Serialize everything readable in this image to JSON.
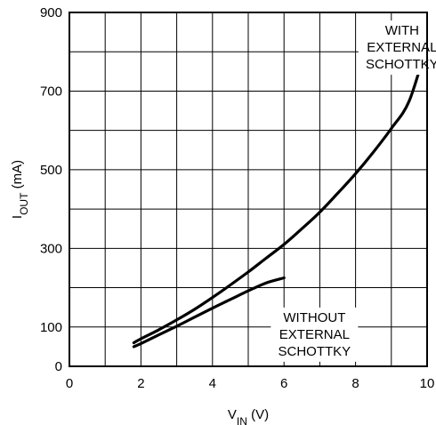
{
  "chart_data": {
    "type": "line",
    "title": "",
    "xlabel": {
      "main": "V",
      "sub": "IN",
      "unit": " (V)"
    },
    "ylabel": {
      "main": "I",
      "sub": "OUT",
      "unit": " (mA)"
    },
    "xlim": [
      0,
      10
    ],
    "ylim": [
      0,
      900
    ],
    "xticks": [
      0,
      2,
      4,
      6,
      8,
      10
    ],
    "yticks": [
      0,
      100,
      300,
      500,
      700,
      900
    ],
    "x_grid": [
      0,
      1,
      2,
      3,
      4,
      5,
      6,
      7,
      8,
      9,
      10
    ],
    "y_grid": [
      0,
      100,
      200,
      300,
      400,
      500,
      600,
      700,
      800,
      900
    ],
    "grid": true,
    "series": [
      {
        "name": "WITH EXTERNAL SCHOTTKY",
        "x": [
          1.8,
          2,
          2.5,
          3,
          3.5,
          4,
          4.5,
          5,
          5.5,
          6,
          6.5,
          7,
          7.5,
          8,
          8.5,
          9,
          9.5,
          10
        ],
        "y": [
          60,
          70,
          93,
          118,
          145,
          175,
          207,
          240,
          275,
          310,
          350,
          392,
          440,
          490,
          545,
          605,
          675,
          820
        ]
      },
      {
        "name": "WITHOUT EXTERNAL SCHOTTKY",
        "x": [
          1.8,
          2,
          2.5,
          3,
          3.5,
          4,
          4.5,
          5,
          5.5,
          6
        ],
        "y": [
          50,
          58,
          80,
          102,
          125,
          148,
          170,
          192,
          212,
          225
        ]
      }
    ],
    "annotations": [
      {
        "lines": [
          "WITH",
          "EXTERNAL",
          "SCHOTTKY"
        ],
        "x": 9.3,
        "y": 875
      },
      {
        "lines": [
          "WITHOUT",
          "EXTERNAL",
          "SCHOTTKY"
        ],
        "x": 6.85,
        "y": 145
      }
    ]
  }
}
